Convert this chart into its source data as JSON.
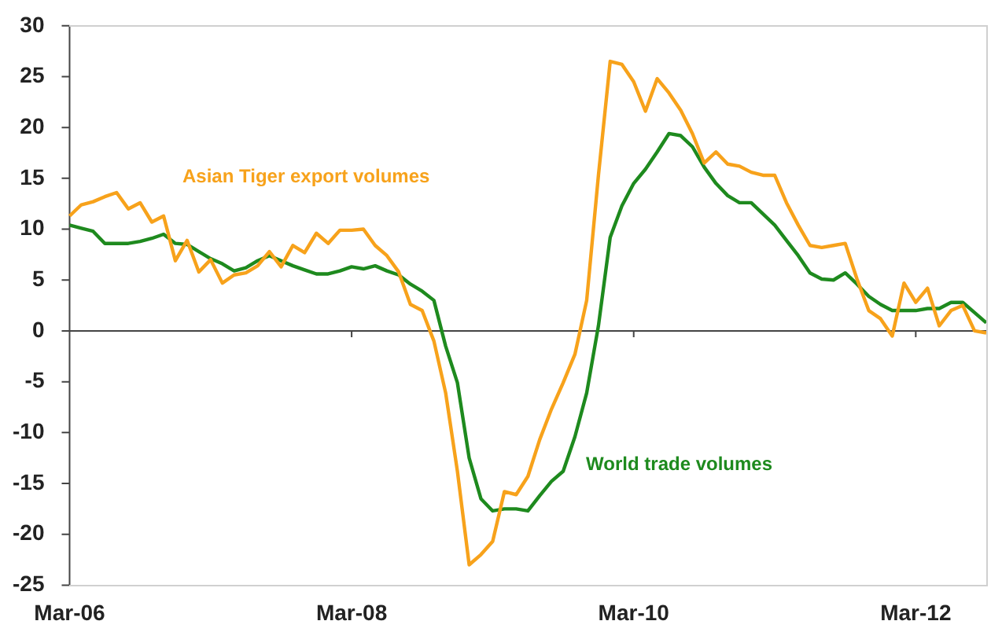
{
  "chart_data": {
    "type": "line",
    "categories": [
      "Mar-06",
      null,
      null,
      null,
      null,
      null,
      null,
      null,
      null,
      null,
      null,
      null,
      null,
      null,
      null,
      null,
      null,
      null,
      null,
      null,
      null,
      null,
      null,
      null,
      "Mar-08",
      null,
      null,
      null,
      null,
      null,
      null,
      null,
      null,
      null,
      null,
      null,
      null,
      null,
      null,
      null,
      null,
      null,
      null,
      null,
      null,
      null,
      null,
      null,
      "Mar-10",
      null,
      null,
      null,
      null,
      null,
      null,
      null,
      null,
      null,
      null,
      null,
      null,
      null,
      null,
      null,
      null,
      null,
      null,
      null,
      null,
      null,
      null,
      null,
      "Mar-12",
      null,
      null,
      null,
      null,
      null,
      null
    ],
    "series": [
      {
        "name": "Asian Tiger export volumes",
        "color": "#f7a21b",
        "values": [
          11.3,
          12.4,
          12.7,
          13.2,
          13.6,
          12.0,
          12.6,
          10.7,
          11.3,
          6.9,
          8.9,
          5.8,
          7.0,
          4.7,
          5.5,
          5.7,
          6.4,
          7.8,
          6.3,
          8.4,
          7.7,
          9.6,
          8.6,
          9.9,
          9.9,
          10.0,
          8.4,
          7.4,
          5.8,
          2.6,
          2.0,
          -1.0,
          -6.1,
          -13.8,
          -23.0,
          -22.0,
          -20.7,
          -15.8,
          -16.1,
          -14.3,
          -10.7,
          -7.7,
          -5.1,
          -2.3,
          3.0,
          15.3,
          26.5,
          26.2,
          24.5,
          21.6,
          24.8,
          23.4,
          21.7,
          19.4,
          16.5,
          17.6,
          16.4,
          16.2,
          15.6,
          15.3,
          15.3,
          12.6,
          10.4,
          8.4,
          8.2,
          8.4,
          8.6,
          5.1,
          2.0,
          1.2,
          -0.5,
          4.7,
          2.8,
          4.2,
          0.5,
          2.0,
          2.5,
          0.0,
          -0.2
        ]
      },
      {
        "name": "World trade volumes",
        "color": "#1e8a1e",
        "values": [
          10.4,
          10.1,
          9.8,
          8.6,
          8.6,
          8.6,
          8.8,
          9.1,
          9.5,
          8.6,
          8.5,
          7.8,
          7.1,
          6.6,
          5.9,
          6.2,
          6.9,
          7.4,
          6.9,
          6.4,
          6.0,
          5.6,
          5.6,
          5.9,
          6.3,
          6.1,
          6.4,
          5.9,
          5.5,
          4.6,
          3.9,
          3.0,
          -1.5,
          -5.1,
          -12.5,
          -16.5,
          -17.7,
          -17.5,
          -17.5,
          -17.7,
          -16.2,
          -14.8,
          -13.8,
          -10.4,
          -6.1,
          0.5,
          9.2,
          12.3,
          14.5,
          15.9,
          17.6,
          19.4,
          19.2,
          18.1,
          16.1,
          14.5,
          13.3,
          12.6,
          12.6,
          11.5,
          10.4,
          8.9,
          7.4,
          5.7,
          5.1,
          5.0,
          5.7,
          4.6,
          3.4,
          2.6,
          2.0,
          2.0,
          2.0,
          2.2,
          2.2,
          2.8,
          2.8,
          1.8,
          0.8
        ]
      }
    ],
    "ref_lines": [
      {
        "axis": "y",
        "value": 0,
        "color": "#444444"
      }
    ],
    "ylim": [
      -25,
      30
    ],
    "yticks": [
      -25,
      -20,
      -15,
      -10,
      -5,
      0,
      5,
      10,
      15,
      20,
      25,
      30
    ],
    "grid": false,
    "legend": false,
    "marker": "none",
    "line_style": "solid"
  }
}
